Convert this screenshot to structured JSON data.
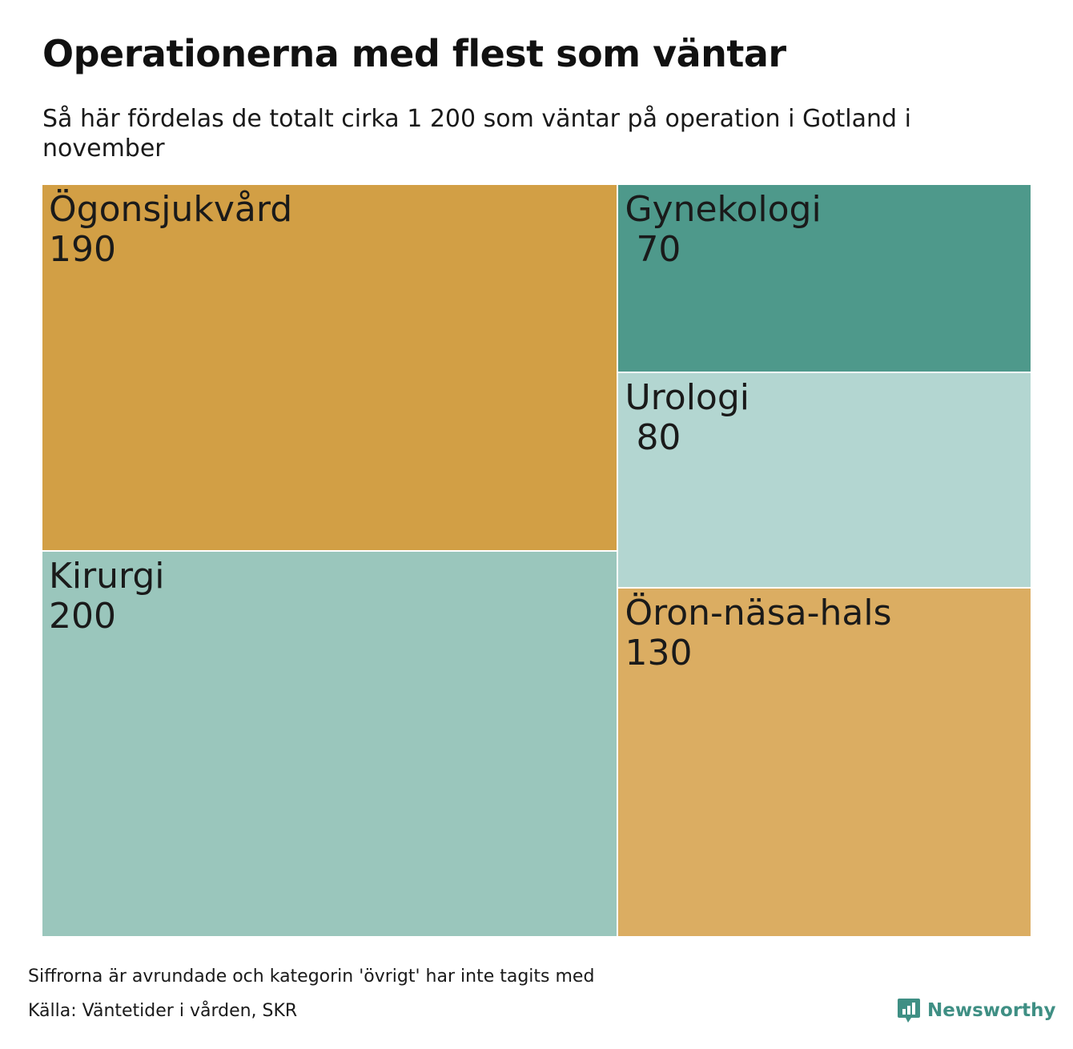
{
  "header": {
    "title": "Operationerna med flest som väntar",
    "subtitle": "Så här fördelas de totalt cirka 1 200 som väntar på operation i Gotland i november"
  },
  "chart_data": {
    "type": "treemap",
    "title": "Operationerna med flest som väntar",
    "subtitle": "Så här fördelas de totalt cirka 1 200 som väntar på operation i Gotland i november",
    "items": [
      {
        "name": "Ögonsjukvård",
        "value": 190,
        "value_label": "190",
        "color": "#d29f45"
      },
      {
        "name": "Kirurgi",
        "value": 200,
        "value_label": "200",
        "color": "#9ac6bc"
      },
      {
        "name": "Gynekologi",
        "value": 70,
        "value_label": " 70",
        "color": "#4e998b"
      },
      {
        "name": "Urologi",
        "value": 80,
        "value_label": " 80",
        "color": "#b3d6d1"
      },
      {
        "name": "Öron-näsa-hals",
        "value": 130,
        "value_label": "130",
        "color": "#dbad62"
      }
    ]
  },
  "footer": {
    "note": "Siffrorna är avrundade och kategorin 'övrigt' har inte tagits med",
    "source": "Källa: Väntetider i vården, SKR",
    "logo_text": "Newsworthy",
    "logo_icon": "newsworthy-bar-chart-icon",
    "logo_color": "#3f8f84"
  }
}
